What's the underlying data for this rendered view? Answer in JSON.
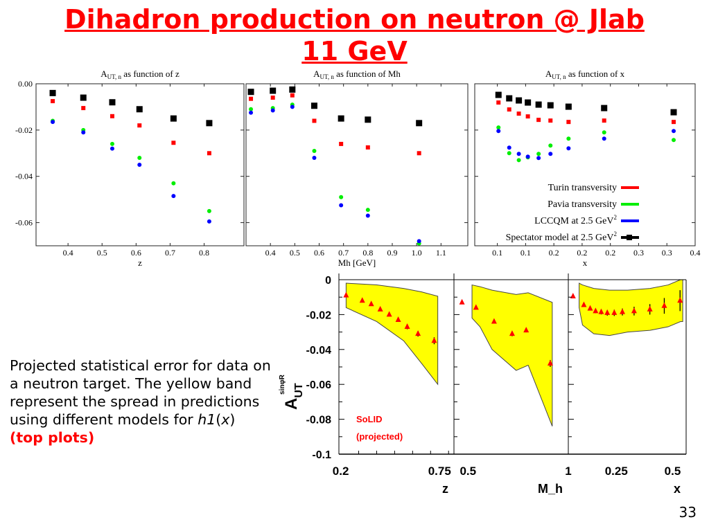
{
  "slide": {
    "title_line1": "Dihadron production on neutron @ Jlab",
    "title_line2": "11 GeV",
    "description_pre": "Projected statistical error for data on a neutron target. The yellow band represent the spread in predictions using different models for ",
    "description_func": "h1",
    "description_open": "(",
    "description_var": "x",
    "description_close": ")",
    "description_highlight": "(top plots)",
    "page_number": "33"
  },
  "colors": {
    "title": "#ff0000",
    "turin": "#ff0000",
    "pavia": "#00ee00",
    "lccqm": "#0000ff",
    "spectator": "#000000",
    "band": "#ffff00",
    "solid_points": "#ff0000"
  },
  "chart_data": [
    {
      "type": "scatter",
      "title": "A_UT, n as function of z",
      "title_main": "A",
      "title_sub": "UT, n",
      "title_rest": " as function of z",
      "xlabel": "z",
      "xlim": [
        0.306,
        0.917
      ],
      "ylim": [
        -0.07,
        0.0
      ],
      "xticks": [
        0.4,
        0.5,
        0.6,
        0.7,
        0.8
      ],
      "xtick_labels": [
        "0.4",
        "0.5",
        "0.6",
        "0.7",
        "0.8"
      ],
      "yticks": [
        0.0,
        -0.02,
        -0.04,
        -0.06
      ],
      "ytick_labels": [
        "0.00",
        "-0.02",
        "-0.04",
        "-0.06"
      ],
      "x": [
        0.355,
        0.445,
        0.53,
        0.61,
        0.71,
        0.815
      ],
      "series": [
        {
          "key": "spectator",
          "values": [
            -0.004,
            -0.006,
            -0.008,
            -0.011,
            -0.015,
            -0.017
          ]
        },
        {
          "key": "turin",
          "values": [
            -0.0075,
            -0.0105,
            -0.014,
            -0.018,
            -0.0255,
            -0.03
          ]
        },
        {
          "key": "pavia",
          "values": [
            -0.016,
            -0.02,
            -0.026,
            -0.032,
            -0.043,
            -0.055
          ]
        },
        {
          "key": "lccqm",
          "values": [
            -0.0165,
            -0.021,
            -0.028,
            -0.035,
            -0.0485,
            -0.0595
          ]
        }
      ]
    },
    {
      "type": "scatter",
      "title": "A_UT, n as function of Mh",
      "title_main": "A",
      "title_sub": "UT, n",
      "title_rest": " as function of Mh",
      "xlabel": "Mh [GeV]",
      "xlim": [
        0.3,
        1.21
      ],
      "ylim": [
        -0.07,
        0.0
      ],
      "xticks": [
        0.4,
        0.5,
        0.6,
        0.7,
        0.8,
        0.9,
        1.0,
        1.1
      ],
      "xtick_labels": [
        "0.4",
        "0.5",
        "0.6",
        "0.7",
        "0.8",
        "0.9",
        "1.0",
        "1.1"
      ],
      "yticks": [
        0.0,
        -0.02,
        -0.04,
        -0.06
      ],
      "x": [
        0.32,
        0.41,
        0.49,
        0.58,
        0.69,
        0.8,
        1.01
      ],
      "series": [
        {
          "key": "spectator",
          "values": [
            -0.0035,
            -0.003,
            -0.0025,
            -0.0095,
            -0.015,
            -0.0155,
            -0.017
          ]
        },
        {
          "key": "turin",
          "values": [
            -0.0065,
            -0.006,
            -0.005,
            -0.016,
            -0.026,
            -0.0275,
            -0.03
          ]
        },
        {
          "key": "pavia",
          "values": [
            -0.011,
            -0.0105,
            -0.009,
            -0.029,
            -0.049,
            -0.0545,
            -0.069
          ]
        },
        {
          "key": "lccqm",
          "values": [
            -0.0125,
            -0.0115,
            -0.01,
            -0.032,
            -0.0525,
            -0.057,
            -0.068
          ]
        }
      ]
    },
    {
      "type": "scatter",
      "title": "A_UT, n as function of x",
      "title_main": "A",
      "title_sub": "UT, n",
      "title_rest": " as function of x",
      "xlabel": "x",
      "xlim": [
        0.01,
        0.4
      ],
      "ylim": [
        -0.07,
        0.0
      ],
      "xticks": [
        0.05,
        0.1,
        0.15,
        0.2,
        0.25,
        0.3,
        0.35,
        0.4
      ],
      "xtick_labels": [
        "0.1",
        "0.1",
        "0.2",
        "0.2",
        "0.2",
        "0.3",
        "0.3",
        "0.4"
      ],
      "yticks": [
        0.0,
        -0.02,
        -0.04,
        -0.06
      ],
      "x": [
        0.052,
        0.071,
        0.088,
        0.104,
        0.123,
        0.144,
        0.176,
        0.239,
        0.362
      ],
      "series": [
        {
          "key": "spectator",
          "name": "Spectator model at 2.5 GeV²",
          "values": [
            -0.0048,
            -0.0063,
            -0.0072,
            -0.0081,
            -0.009,
            -0.0093,
            -0.0099,
            -0.0105,
            -0.0123
          ]
        },
        {
          "key": "turin",
          "name": "Turin transversity",
          "values": [
            -0.0081,
            -0.0111,
            -0.0129,
            -0.0141,
            -0.0156,
            -0.0159,
            -0.0165,
            -0.0159,
            -0.0165
          ]
        },
        {
          "key": "pavia",
          "name": "Pavia transversity",
          "values": [
            -0.0189,
            -0.03,
            -0.033,
            -0.0318,
            -0.0303,
            -0.0267,
            -0.0237,
            -0.021,
            -0.0243
          ]
        },
        {
          "key": "lccqm",
          "name": "LCCQM at 2.5 GeV²",
          "values": [
            -0.0204,
            -0.0276,
            -0.0303,
            -0.0315,
            -0.0321,
            -0.0303,
            -0.0279,
            -0.0237,
            -0.0204
          ]
        }
      ],
      "legend": {
        "placement": "bottom-right",
        "entries": [
          {
            "key": "turin",
            "label": "Turin transversity"
          },
          {
            "key": "pavia",
            "label": "Pavia transversity"
          },
          {
            "key": "lccqm",
            "label": "LCCQM at 2.5 GeV",
            "sup": "2"
          },
          {
            "key": "spectator",
            "label": "Spectator model at 2.5 GeV",
            "sup": "2"
          }
        ]
      }
    },
    {
      "type": "scatter",
      "title": "",
      "ylabel": "A_UT^sinφR",
      "ylabel_main": "A",
      "ylabel_sub": "UT",
      "ylabel_sup": "sinφR",
      "ylim": [
        -0.1,
        0.003
      ],
      "yticks": [
        0,
        -0.02,
        -0.04,
        -0.06,
        -0.08,
        -0.1
      ],
      "ytick_labels": [
        "0",
        "-0.02",
        "-0.04",
        "-0.06",
        "-0.08",
        "-0.1"
      ],
      "annotation": [
        "SoLID",
        "(projected)"
      ],
      "panels": [
        {
          "xlabel": "z",
          "xlim": [
            0.19,
            0.83
          ],
          "xtick_labels": [
            {
              "v": 0.2,
              "t": "0.2"
            },
            {
              "v": 0.75,
              "t": "0.75"
            }
          ],
          "x": [
            0.23,
            0.32,
            0.37,
            0.42,
            0.47,
            0.52,
            0.57,
            0.63,
            0.72
          ],
          "values": [
            -0.009,
            -0.012,
            -0.014,
            -0.017,
            -0.02,
            -0.023,
            -0.027,
            -0.031,
            -0.035
          ],
          "errors": [
            0.0008,
            0.0008,
            0.0009,
            0.001,
            0.001,
            0.0012,
            0.0014,
            0.0016,
            0.002
          ],
          "band_x": [
            0.23,
            0.4,
            0.55,
            0.65,
            0.74
          ],
          "band_upper": [
            -0.002,
            -0.003,
            -0.005,
            -0.007,
            -0.0095
          ],
          "band_lower": [
            -0.016,
            -0.024,
            -0.035,
            -0.048,
            -0.06
          ]
        },
        {
          "xlabel": "M_h",
          "xlabel_main": "M",
          "xlabel_sub": "h",
          "xlim": [
            0.43,
            1.0
          ],
          "xtick_labels": [
            {
              "v": 0.5,
              "t": "0.5"
            },
            {
              "v": 1.0,
              "t": "1"
            }
          ],
          "x": [
            0.47,
            0.54,
            0.63,
            0.72,
            0.79,
            0.91
          ],
          "values": [
            -0.013,
            -0.016,
            -0.024,
            -0.031,
            -0.029,
            -0.048
          ],
          "errors": [
            0.0008,
            0.001,
            0.0012,
            0.0014,
            0.0012,
            0.002
          ],
          "band_x": [
            0.52,
            0.56,
            0.62,
            0.74,
            0.8,
            0.92
          ],
          "band_upper": [
            -0.003,
            -0.004,
            -0.006,
            -0.0085,
            -0.0075,
            -0.013
          ],
          "band_lower": [
            -0.022,
            -0.027,
            -0.04,
            -0.052,
            -0.049,
            -0.084
          ]
        },
        {
          "xlabel": "x",
          "xlim": [
            0.037,
            0.56
          ],
          "xtick_labels": [
            {
              "v": 0.25,
              "t": "0.25"
            },
            {
              "v": 0.5,
              "t": "0.5"
            }
          ],
          "x": [
            0.058,
            0.106,
            0.134,
            0.158,
            0.183,
            0.21,
            0.241,
            0.277,
            0.329,
            0.399,
            0.463,
            0.533
          ],
          "values": [
            -0.0095,
            -0.0145,
            -0.0165,
            -0.018,
            -0.0185,
            -0.019,
            -0.019,
            -0.0185,
            -0.018,
            -0.017,
            -0.015,
            -0.012
          ],
          "errors": [
            0.0006,
            0.0008,
            0.001,
            0.0012,
            0.0014,
            0.0016,
            0.0018,
            0.002,
            0.0025,
            0.003,
            0.0045,
            0.006
          ],
          "band_x": [
            0.085,
            0.1,
            0.15,
            0.22,
            0.3,
            0.4,
            0.48,
            0.535,
            0.545
          ],
          "band_upper": [
            -0.002,
            -0.003,
            -0.005,
            -0.006,
            -0.006,
            -0.005,
            -0.003,
            0.0,
            0.0
          ],
          "band_lower": [
            -0.016,
            -0.026,
            -0.031,
            -0.032,
            -0.03,
            -0.029,
            -0.027,
            -0.024,
            -0.024
          ]
        }
      ]
    }
  ]
}
